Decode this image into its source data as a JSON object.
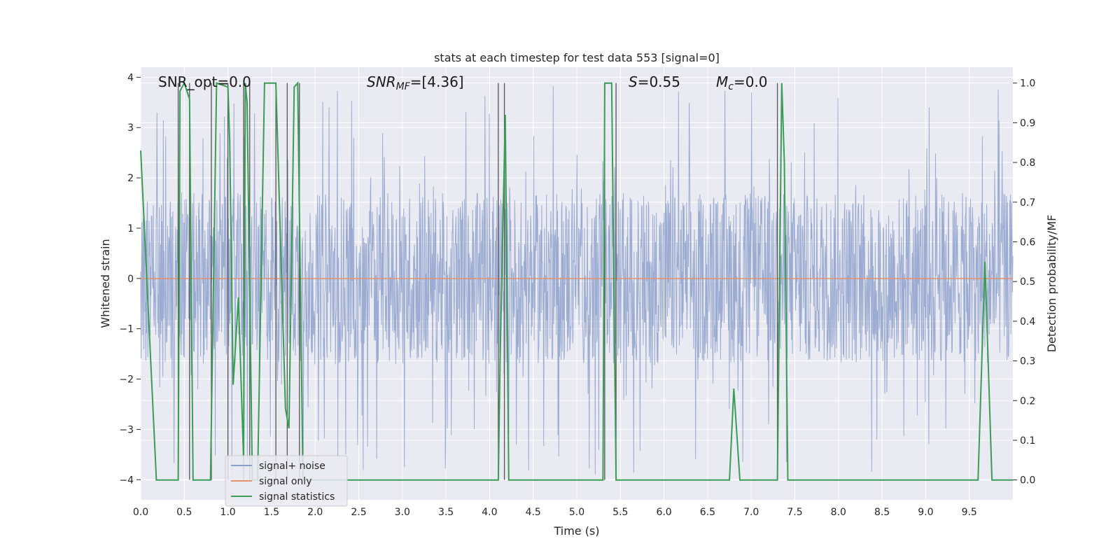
{
  "chart_data": {
    "type": "line",
    "title": "stats at each timestep for test data 553 [signal=0]",
    "xlabel": "Time (s)",
    "ylabel": "Whitened strain",
    "ylabel_right": "Detection probability/MF",
    "xlim": [
      0,
      10
    ],
    "ylim": [
      -4.4,
      4.2
    ],
    "ylim_right": [
      -0.05,
      1.04
    ],
    "x_ticks": [
      "0.0",
      "0.5",
      "1.0",
      "1.5",
      "2.0",
      "2.5",
      "3.0",
      "3.5",
      "4.0",
      "4.5",
      "5.0",
      "5.5",
      "6.0",
      "6.5",
      "7.0",
      "7.5",
      "8.0",
      "8.5",
      "9.0",
      "9.5"
    ],
    "y_ticks": [
      "−4",
      "−3",
      "−2",
      "−1",
      "0",
      "1",
      "2",
      "3",
      "4"
    ],
    "y_ticks_right": [
      "0.0",
      "0.1",
      "0.2",
      "0.3",
      "0.4",
      "0.5",
      "0.6",
      "0.7",
      "0.8",
      "0.9",
      "1.0"
    ],
    "grid": true,
    "legend_position": "lower-left",
    "annotations": {
      "snr_opt": "SNR_opt=0.0",
      "snr_mf_main": "SNR",
      "snr_mf_sub": "MF",
      "snr_mf_value": "=[4.36]",
      "s_main": "S",
      "s_value": "=0.55",
      "mc_main": "M",
      "mc_sub": "c",
      "mc_value": "=0.0"
    },
    "series": [
      {
        "name": "signal+ noise",
        "color": "#8da0cb",
        "noise_envelope": 1.7,
        "spike_max": 3.9
      },
      {
        "name": "signal only",
        "color": "#e5906e",
        "value": 0.0
      },
      {
        "name": "signal statistics",
        "color": "#3a9c55",
        "x": [
          0.0,
          0.18,
          0.43,
          0.45,
          0.5,
          0.56,
          0.6,
          0.8,
          0.87,
          1.0,
          1.02,
          1.06,
          1.12,
          1.18,
          1.2,
          1.22,
          1.28,
          1.3,
          1.34,
          1.42,
          1.55,
          1.66,
          1.7,
          1.76,
          1.8,
          1.86,
          4.1,
          4.12,
          4.18,
          4.22,
          5.3,
          5.32,
          5.4,
          5.45,
          5.5,
          6.75,
          6.8,
          6.87,
          7.1,
          7.3,
          7.35,
          7.38,
          7.42,
          9.6,
          9.68,
          9.76,
          10.0
        ],
        "y": [
          0.83,
          0.0,
          0.0,
          0.98,
          1.0,
          0.96,
          0.0,
          0.0,
          1.0,
          0.99,
          0.86,
          0.24,
          0.46,
          0.05,
          1.0,
          0.95,
          0.0,
          0.0,
          0.0,
          1.0,
          1.0,
          0.18,
          0.13,
          0.99,
          1.0,
          0.0,
          0.0,
          0.3,
          0.92,
          0.0,
          0.0,
          1.0,
          1.0,
          0.0,
          0.0,
          0.0,
          0.23,
          0.0,
          0.0,
          0.0,
          1.0,
          0.8,
          0.0,
          0.0,
          0.55,
          0.0,
          0.0
        ]
      }
    ],
    "mf_peaks_x": [
      0.43,
      0.56,
      0.81,
      1.0,
      1.18,
      1.25,
      1.55,
      1.68,
      1.82,
      4.1,
      4.17,
      5.32,
      5.45,
      7.3
    ]
  }
}
